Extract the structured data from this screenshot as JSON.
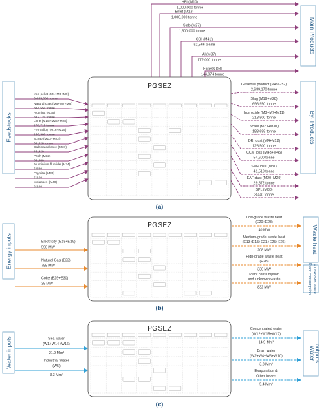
{
  "panel_a": {
    "box_title": "PGSEZ",
    "letter": "(a)",
    "left_category": "Feedstocks",
    "inputs": [
      {
        "label": "Iron pellet (M1+M5+M9)",
        "value": "6,445,000 tonne"
      },
      {
        "label": "Natural Gas (M6+M7+M8)",
        "value": "884,550 tonne"
      },
      {
        "label": "Alumina (M35)",
        "value": "337,120 tonne"
      },
      {
        "label": "Lime (M15+M24+M28)",
        "value": "178,711 tonne"
      },
      {
        "label": "Ferroalloy (M16+M25)",
        "value": "136,960 tonne"
      },
      {
        "label": "Scrap (M13+M22)",
        "value": "64,428 tonne"
      },
      {
        "label": "Calcinated coke (M37)",
        "value": "43,920"
      },
      {
        "label": "Pitch (M32)",
        "value": "35,480"
      },
      {
        "label": "Aluminium fluoride (M34)",
        "value": "6,880"
      },
      {
        "label": "Cryolite (M33)",
        "value": "5,160"
      },
      {
        "label": "Molasses (M40)",
        "value": "2,190"
      }
    ],
    "top_outputs": [
      {
        "label": "HBI (M10)",
        "value": "1,000,000 tonne"
      },
      {
        "label": "Billet (M18)",
        "value": "1,000,000 tonne"
      },
      {
        "label": "Slab (M27)",
        "value": "1,500,000 tonne"
      },
      {
        "label": "CBI (M41)",
        "value": "52,566 tonne"
      },
      {
        "label": "Al (M37)",
        "value": "172,000 tonne"
      },
      {
        "label": "Excess DRI",
        "value": "144,974 tonne"
      }
    ],
    "right_category_main": "Main Products",
    "right_category_by": "By- Products",
    "right_outputs": [
      {
        "label": "Gaseous product (M49 - 52)",
        "value": "2,689,170 tonne"
      },
      {
        "label": "Slag (M19+M28)",
        "value": "696,950 tonne"
      },
      {
        "label": "Iron oxide (M3+M7+M11)",
        "value": "213,500 tonne"
      },
      {
        "label": "Scale (M21+M30)",
        "value": "183,699 tonne"
      },
      {
        "label": "DRI dust (M4+M12)",
        "value": "128,500 tonne"
      },
      {
        "label": "CCM loss (M43+M45)",
        "value": "54,600 tonne"
      },
      {
        "label": "SMP loss (M31)",
        "value": "41,510 tonne"
      },
      {
        "label": "EAF dust (M20+M29)",
        "value": "29,572 tonne"
      },
      {
        "label": "SPL (M38)",
        "value": "3,440 tonne"
      }
    ]
  },
  "panel_b": {
    "box_title": "PGSEZ",
    "letter": "(b)",
    "left_category": "Energy inputs",
    "inputs": [
      {
        "label": "Electricity (E18+E19)",
        "value": "590 MW"
      },
      {
        "label": "Natural Gas (E22)",
        "value": "785 MW"
      },
      {
        "label": "Coke (E29+E30)",
        "value": "35 MW"
      }
    ],
    "outputs": [
      {
        "label": "Low-grade waste heat",
        "label2": "(E20+E23)",
        "value": "40 MW"
      },
      {
        "label": "Medium-grade waste heat",
        "label2": "(E13+E15+E21+E25+E26)",
        "value": "208 MW"
      },
      {
        "label": "High-grade waste heat",
        "label2": "(E28)",
        "value": "330 MW"
      },
      {
        "label": "Plant consumption",
        "label2": "and unknown waste",
        "value": "832 MW"
      }
    ],
    "right_category_heat": "Waste heat",
    "right_category_plant": "Plant consumption + unknown waste"
  },
  "panel_c": {
    "box_title": "PGSEZ",
    "letter": "(c)",
    "left_category": "Water inputs",
    "inputs": [
      {
        "label": "Sea water",
        "label2": "(W1+W14+W16)",
        "value": "21.9 Mm³"
      },
      {
        "label": "Industrial Water",
        "label2": "(W5)",
        "value": "3.3 Mm³"
      }
    ],
    "outputs": [
      {
        "label": "Concentrated water",
        "label2": "(W12+W15+W17)",
        "value": "14.9 Mm³"
      },
      {
        "label": "Drain water",
        "label2": "(W2+W4+W6+W10)",
        "value": "3.3 Mm³"
      },
      {
        "label": "Evaporation &",
        "label2": "Other losses",
        "value": "5.4 Mm³"
      }
    ],
    "right_category": "Water outputs"
  },
  "colors": {
    "material": "#8e3d7a",
    "energy": "#e8892c",
    "water": "#2e9fd6",
    "category_box": "#7aa9c9",
    "category_text": "#2a5f8a"
  }
}
